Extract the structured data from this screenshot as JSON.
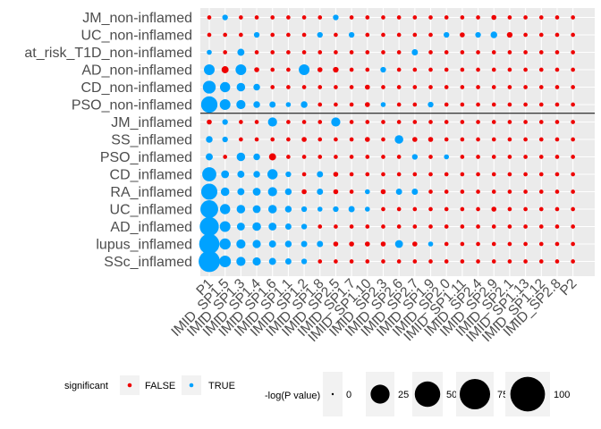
{
  "chart_data": {
    "type": "scatter",
    "rows": [
      "JM_non-inflamed",
      "UC_non-inflamed",
      "at_risk_T1D_non-inflamed",
      "AD_non-inflamed",
      "CD_non-inflamed",
      "PSO_non-inflamed",
      "JM_inflamed",
      "SS_inflamed",
      "PSO_inflamed",
      "CD_inflamed",
      "RA_inflamed",
      "UC_inflamed",
      "AD_inflamed",
      "lupus_inflamed",
      "SSc_inflamed"
    ],
    "columns": [
      "P1",
      "IMID_SP1.5",
      "IMID_SP1.3",
      "IMID_SP1.4",
      "IMID_SP1.6",
      "IMID_SP1.1",
      "IMID_SP1.2",
      "IMID_SP1.8",
      "IMID_SP2.5",
      "IMID_SP1.7",
      "IMID_SP1.10",
      "IMID_SP2.3",
      "IMID_SP2.6",
      "IMID_SP2.7",
      "IMID_SP1.9",
      "IMID_SP2.0",
      "IMID_SP1.11",
      "IMID_SP2.4",
      "IMID_SP2.9",
      "IMID_SP2.1",
      "IMID_SP1.13",
      "IMID_SP1.12",
      "IMID_SP2.8",
      "P2"
    ],
    "separator_after_row": "PSO_non-inflamed",
    "values": [
      [
        1,
        3,
        1,
        1,
        1,
        1,
        1,
        1,
        3,
        1,
        1,
        1,
        1,
        1,
        1,
        1,
        1,
        1,
        2,
        1,
        1,
        1,
        1,
        1
      ],
      [
        1,
        1,
        1,
        3,
        1,
        1,
        1,
        3,
        1,
        3,
        1,
        1,
        1,
        1,
        1,
        3,
        2,
        3,
        5,
        3,
        1,
        1,
        1,
        1
      ],
      [
        2,
        1,
        6,
        1,
        1,
        1,
        1,
        1,
        1,
        1,
        1,
        1,
        1,
        4,
        1,
        1,
        1,
        1,
        1,
        1,
        1,
        1,
        1,
        1
      ],
      [
        18,
        6,
        18,
        2,
        1,
        1,
        18,
        2,
        3,
        1,
        1,
        3,
        1,
        1,
        1,
        1,
        1,
        1,
        1,
        1,
        1,
        1,
        1,
        1
      ],
      [
        28,
        16,
        10,
        5,
        1,
        1,
        1,
        1,
        1,
        1,
        2,
        1,
        1,
        1,
        1,
        1,
        1,
        1,
        1,
        1,
        1,
        1,
        1,
        1
      ],
      [
        50,
        18,
        12,
        5,
        4,
        2,
        5,
        1,
        1,
        1,
        2,
        2,
        1,
        1,
        3,
        1,
        1,
        1,
        1,
        1,
        1,
        1,
        1,
        1
      ],
      [
        2,
        3,
        1,
        1,
        12,
        1,
        1,
        1,
        12,
        1,
        1,
        1,
        1,
        1,
        1,
        1,
        1,
        1,
        1,
        1,
        1,
        1,
        1,
        1
      ],
      [
        5,
        3,
        1,
        1,
        1,
        1,
        2,
        1,
        1,
        1,
        2,
        1,
        10,
        2,
        2,
        1,
        1,
        1,
        1,
        1,
        1,
        1,
        1,
        1
      ],
      [
        6,
        1,
        10,
        5,
        6,
        1,
        1,
        1,
        1,
        1,
        1,
        1,
        1,
        3,
        1,
        2,
        1,
        1,
        1,
        1,
        1,
        1,
        1,
        1
      ],
      [
        35,
        8,
        6,
        5,
        16,
        3,
        1,
        4,
        2,
        1,
        1,
        1,
        1,
        1,
        1,
        1,
        1,
        1,
        1,
        1,
        1,
        1,
        1,
        1
      ],
      [
        48,
        10,
        6,
        8,
        12,
        5,
        2,
        4,
        2,
        1,
        2,
        2,
        4,
        4,
        1,
        1,
        1,
        1,
        1,
        1,
        1,
        1,
        1,
        1
      ],
      [
        60,
        16,
        10,
        8,
        10,
        5,
        3,
        2,
        3,
        4,
        2,
        1,
        1,
        1,
        1,
        1,
        1,
        1,
        2,
        1,
        1,
        1,
        1,
        1
      ],
      [
        70,
        18,
        8,
        10,
        8,
        4,
        3,
        1,
        1,
        1,
        1,
        1,
        1,
        1,
        1,
        1,
        1,
        1,
        1,
        1,
        1,
        1,
        1,
        1
      ],
      [
        80,
        20,
        12,
        9,
        6,
        5,
        4,
        4,
        2,
        2,
        2,
        2,
        8,
        2,
        2,
        1,
        1,
        1,
        1,
        1,
        1,
        1,
        1,
        1
      ],
      [
        90,
        22,
        12,
        9,
        6,
        4,
        3,
        1,
        1,
        1,
        1,
        1,
        1,
        1,
        1,
        1,
        1,
        1,
        1,
        1,
        1,
        1,
        1,
        1
      ]
    ],
    "significant": [
      [
        0,
        1,
        0,
        0,
        0,
        0,
        0,
        0,
        1,
        0,
        0,
        0,
        0,
        0,
        0,
        0,
        0,
        0,
        0,
        0,
        0,
        0,
        0,
        0
      ],
      [
        0,
        0,
        0,
        1,
        0,
        0,
        0,
        1,
        0,
        1,
        0,
        0,
        0,
        0,
        0,
        1,
        0,
        1,
        1,
        0,
        0,
        0,
        0,
        0
      ],
      [
        1,
        0,
        1,
        0,
        0,
        0,
        0,
        0,
        0,
        0,
        0,
        0,
        0,
        1,
        0,
        0,
        0,
        0,
        0,
        0,
        0,
        0,
        0,
        0
      ],
      [
        1,
        0,
        1,
        0,
        0,
        0,
        1,
        0,
        0,
        0,
        0,
        1,
        0,
        0,
        0,
        0,
        0,
        0,
        0,
        0,
        0,
        0,
        0,
        0
      ],
      [
        1,
        1,
        1,
        1,
        0,
        0,
        0,
        0,
        0,
        0,
        0,
        0,
        0,
        0,
        0,
        0,
        0,
        0,
        0,
        0,
        0,
        0,
        0,
        0
      ],
      [
        1,
        1,
        1,
        1,
        1,
        1,
        1,
        0,
        0,
        0,
        0,
        1,
        0,
        0,
        1,
        0,
        0,
        0,
        0,
        0,
        0,
        0,
        0,
        0
      ],
      [
        0,
        1,
        0,
        0,
        1,
        0,
        0,
        0,
        1,
        0,
        0,
        0,
        0,
        0,
        0,
        0,
        0,
        0,
        0,
        0,
        0,
        0,
        0,
        0
      ],
      [
        1,
        1,
        0,
        0,
        0,
        0,
        0,
        0,
        0,
        0,
        0,
        0,
        1,
        0,
        0,
        0,
        0,
        0,
        0,
        0,
        0,
        0,
        0,
        0
      ],
      [
        1,
        0,
        1,
        1,
        0,
        0,
        0,
        0,
        0,
        0,
        0,
        0,
        0,
        1,
        0,
        1,
        0,
        0,
        0,
        0,
        0,
        0,
        0,
        0
      ],
      [
        1,
        1,
        1,
        1,
        1,
        1,
        0,
        1,
        0,
        0,
        0,
        0,
        0,
        0,
        0,
        0,
        0,
        0,
        0,
        0,
        0,
        0,
        0,
        0
      ],
      [
        1,
        1,
        1,
        1,
        1,
        1,
        0,
        1,
        0,
        0,
        1,
        0,
        1,
        1,
        0,
        0,
        0,
        0,
        0,
        0,
        0,
        0,
        0,
        0
      ],
      [
        1,
        1,
        1,
        1,
        1,
        1,
        1,
        1,
        1,
        1,
        1,
        0,
        0,
        0,
        0,
        0,
        0,
        0,
        0,
        0,
        0,
        0,
        0,
        0
      ],
      [
        1,
        1,
        1,
        1,
        1,
        1,
        1,
        0,
        0,
        0,
        0,
        0,
        0,
        0,
        0,
        0,
        0,
        0,
        0,
        0,
        0,
        0,
        0,
        0
      ],
      [
        1,
        1,
        1,
        1,
        1,
        1,
        1,
        1,
        0,
        0,
        0,
        0,
        1,
        0,
        1,
        0,
        0,
        0,
        0,
        0,
        0,
        0,
        0,
        0
      ],
      [
        1,
        1,
        1,
        1,
        1,
        1,
        1,
        0,
        0,
        0,
        0,
        0,
        0,
        0,
        0,
        0,
        0,
        0,
        0,
        0,
        0,
        0,
        0,
        0
      ]
    ],
    "colors": {
      "false": "#ee0000",
      "true": "#00a2ff",
      "panel": "#ebebeb",
      "grid": "#ffffff",
      "size_key": "#000000"
    },
    "legend": {
      "position": "bottom",
      "color_title": "significant",
      "color_entries": [
        "FALSE",
        "TRUE"
      ],
      "size_title": "-log(P value)",
      "size_breaks": [
        0,
        25,
        50,
        75,
        100
      ],
      "size_labels": [
        "0",
        "25",
        "50",
        "75",
        "100"
      ]
    },
    "size_limits": [
      0,
      100
    ],
    "grid": true
  }
}
